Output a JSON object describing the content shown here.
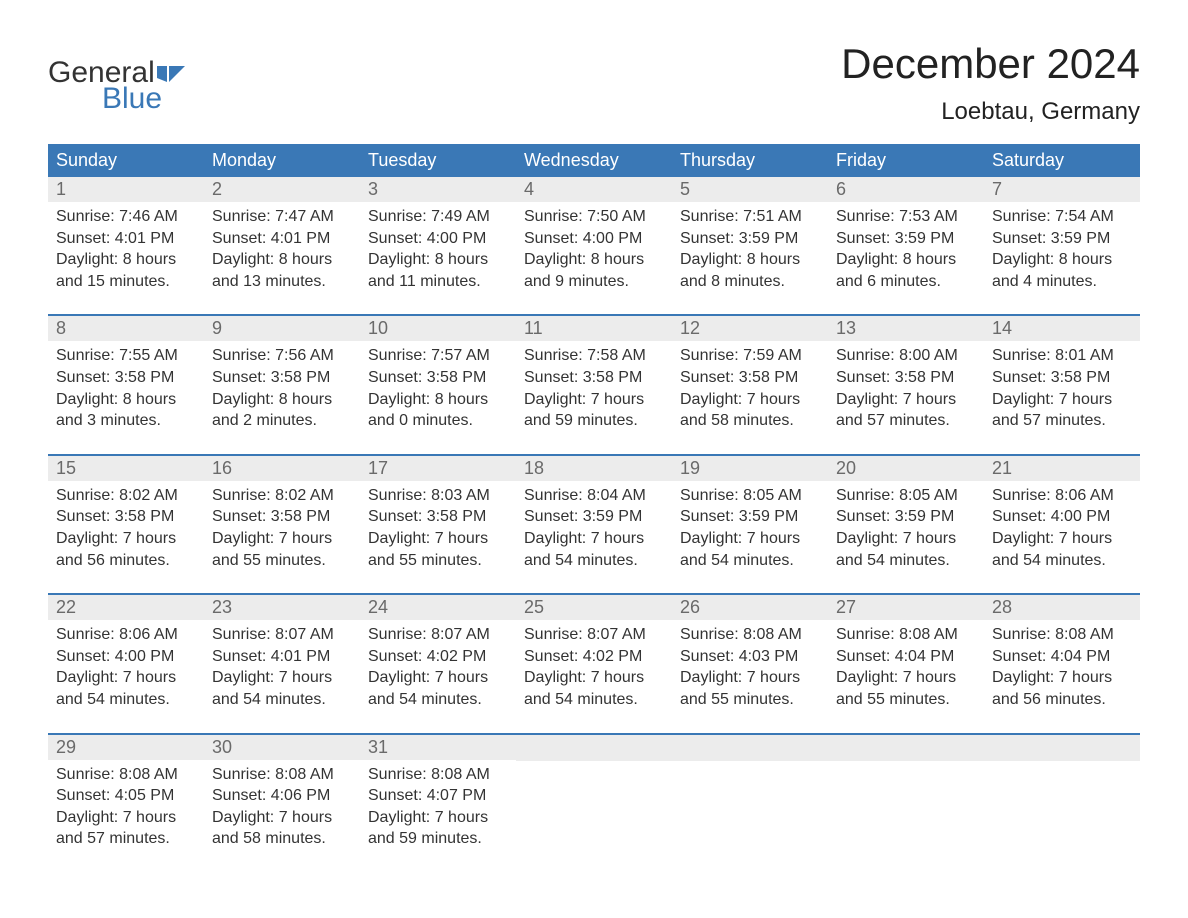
{
  "logo": {
    "word1": "General",
    "word2": "Blue",
    "icon_color": "#3a78b6"
  },
  "title": "December 2024",
  "location": "Loebtau, Germany",
  "colors": {
    "header_bg": "#3a78b6",
    "header_text": "#ffffff",
    "daynum_bg": "#ececec",
    "daynum_text": "#6a6a6a",
    "body_text": "#333333",
    "week_divider": "#3a78b6",
    "page_bg": "#ffffff"
  },
  "typography": {
    "title_fontsize": 42,
    "location_fontsize": 24,
    "dayhead_fontsize": 18,
    "daynum_fontsize": 18,
    "body_fontsize": 16
  },
  "layout": {
    "columns": 7,
    "rows": 5
  },
  "day_names": [
    "Sunday",
    "Monday",
    "Tuesday",
    "Wednesday",
    "Thursday",
    "Friday",
    "Saturday"
  ],
  "weeks": [
    [
      {
        "n": "1",
        "sunrise": "Sunrise: 7:46 AM",
        "sunset": "Sunset: 4:01 PM",
        "d1": "Daylight: 8 hours",
        "d2": "and 15 minutes."
      },
      {
        "n": "2",
        "sunrise": "Sunrise: 7:47 AM",
        "sunset": "Sunset: 4:01 PM",
        "d1": "Daylight: 8 hours",
        "d2": "and 13 minutes."
      },
      {
        "n": "3",
        "sunrise": "Sunrise: 7:49 AM",
        "sunset": "Sunset: 4:00 PM",
        "d1": "Daylight: 8 hours",
        "d2": "and 11 minutes."
      },
      {
        "n": "4",
        "sunrise": "Sunrise: 7:50 AM",
        "sunset": "Sunset: 4:00 PM",
        "d1": "Daylight: 8 hours",
        "d2": "and 9 minutes."
      },
      {
        "n": "5",
        "sunrise": "Sunrise: 7:51 AM",
        "sunset": "Sunset: 3:59 PM",
        "d1": "Daylight: 8 hours",
        "d2": "and 8 minutes."
      },
      {
        "n": "6",
        "sunrise": "Sunrise: 7:53 AM",
        "sunset": "Sunset: 3:59 PM",
        "d1": "Daylight: 8 hours",
        "d2": "and 6 minutes."
      },
      {
        "n": "7",
        "sunrise": "Sunrise: 7:54 AM",
        "sunset": "Sunset: 3:59 PM",
        "d1": "Daylight: 8 hours",
        "d2": "and 4 minutes."
      }
    ],
    [
      {
        "n": "8",
        "sunrise": "Sunrise: 7:55 AM",
        "sunset": "Sunset: 3:58 PM",
        "d1": "Daylight: 8 hours",
        "d2": "and 3 minutes."
      },
      {
        "n": "9",
        "sunrise": "Sunrise: 7:56 AM",
        "sunset": "Sunset: 3:58 PM",
        "d1": "Daylight: 8 hours",
        "d2": "and 2 minutes."
      },
      {
        "n": "10",
        "sunrise": "Sunrise: 7:57 AM",
        "sunset": "Sunset: 3:58 PM",
        "d1": "Daylight: 8 hours",
        "d2": "and 0 minutes."
      },
      {
        "n": "11",
        "sunrise": "Sunrise: 7:58 AM",
        "sunset": "Sunset: 3:58 PM",
        "d1": "Daylight: 7 hours",
        "d2": "and 59 minutes."
      },
      {
        "n": "12",
        "sunrise": "Sunrise: 7:59 AM",
        "sunset": "Sunset: 3:58 PM",
        "d1": "Daylight: 7 hours",
        "d2": "and 58 minutes."
      },
      {
        "n": "13",
        "sunrise": "Sunrise: 8:00 AM",
        "sunset": "Sunset: 3:58 PM",
        "d1": "Daylight: 7 hours",
        "d2": "and 57 minutes."
      },
      {
        "n": "14",
        "sunrise": "Sunrise: 8:01 AM",
        "sunset": "Sunset: 3:58 PM",
        "d1": "Daylight: 7 hours",
        "d2": "and 57 minutes."
      }
    ],
    [
      {
        "n": "15",
        "sunrise": "Sunrise: 8:02 AM",
        "sunset": "Sunset: 3:58 PM",
        "d1": "Daylight: 7 hours",
        "d2": "and 56 minutes."
      },
      {
        "n": "16",
        "sunrise": "Sunrise: 8:02 AM",
        "sunset": "Sunset: 3:58 PM",
        "d1": "Daylight: 7 hours",
        "d2": "and 55 minutes."
      },
      {
        "n": "17",
        "sunrise": "Sunrise: 8:03 AM",
        "sunset": "Sunset: 3:58 PM",
        "d1": "Daylight: 7 hours",
        "d2": "and 55 minutes."
      },
      {
        "n": "18",
        "sunrise": "Sunrise: 8:04 AM",
        "sunset": "Sunset: 3:59 PM",
        "d1": "Daylight: 7 hours",
        "d2": "and 54 minutes."
      },
      {
        "n": "19",
        "sunrise": "Sunrise: 8:05 AM",
        "sunset": "Sunset: 3:59 PM",
        "d1": "Daylight: 7 hours",
        "d2": "and 54 minutes."
      },
      {
        "n": "20",
        "sunrise": "Sunrise: 8:05 AM",
        "sunset": "Sunset: 3:59 PM",
        "d1": "Daylight: 7 hours",
        "d2": "and 54 minutes."
      },
      {
        "n": "21",
        "sunrise": "Sunrise: 8:06 AM",
        "sunset": "Sunset: 4:00 PM",
        "d1": "Daylight: 7 hours",
        "d2": "and 54 minutes."
      }
    ],
    [
      {
        "n": "22",
        "sunrise": "Sunrise: 8:06 AM",
        "sunset": "Sunset: 4:00 PM",
        "d1": "Daylight: 7 hours",
        "d2": "and 54 minutes."
      },
      {
        "n": "23",
        "sunrise": "Sunrise: 8:07 AM",
        "sunset": "Sunset: 4:01 PM",
        "d1": "Daylight: 7 hours",
        "d2": "and 54 minutes."
      },
      {
        "n": "24",
        "sunrise": "Sunrise: 8:07 AM",
        "sunset": "Sunset: 4:02 PM",
        "d1": "Daylight: 7 hours",
        "d2": "and 54 minutes."
      },
      {
        "n": "25",
        "sunrise": "Sunrise: 8:07 AM",
        "sunset": "Sunset: 4:02 PM",
        "d1": "Daylight: 7 hours",
        "d2": "and 54 minutes."
      },
      {
        "n": "26",
        "sunrise": "Sunrise: 8:08 AM",
        "sunset": "Sunset: 4:03 PM",
        "d1": "Daylight: 7 hours",
        "d2": "and 55 minutes."
      },
      {
        "n": "27",
        "sunrise": "Sunrise: 8:08 AM",
        "sunset": "Sunset: 4:04 PM",
        "d1": "Daylight: 7 hours",
        "d2": "and 55 minutes."
      },
      {
        "n": "28",
        "sunrise": "Sunrise: 8:08 AM",
        "sunset": "Sunset: 4:04 PM",
        "d1": "Daylight: 7 hours",
        "d2": "and 56 minutes."
      }
    ],
    [
      {
        "n": "29",
        "sunrise": "Sunrise: 8:08 AM",
        "sunset": "Sunset: 4:05 PM",
        "d1": "Daylight: 7 hours",
        "d2": "and 57 minutes."
      },
      {
        "n": "30",
        "sunrise": "Sunrise: 8:08 AM",
        "sunset": "Sunset: 4:06 PM",
        "d1": "Daylight: 7 hours",
        "d2": "and 58 minutes."
      },
      {
        "n": "31",
        "sunrise": "Sunrise: 8:08 AM",
        "sunset": "Sunset: 4:07 PM",
        "d1": "Daylight: 7 hours",
        "d2": "and 59 minutes."
      },
      null,
      null,
      null,
      null
    ]
  ]
}
